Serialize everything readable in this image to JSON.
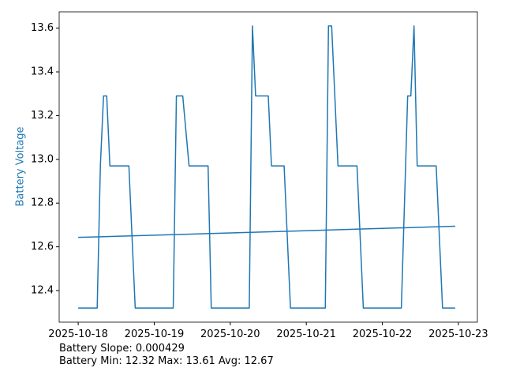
{
  "chart_data": {
    "type": "line",
    "ylabel": "Battery Voltage",
    "ylabel_color": "#1f77b4",
    "xlim": [
      20378.75,
      20384.25
    ],
    "xticks": [
      {
        "value": 20379,
        "label": "2025-10-18"
      },
      {
        "value": 20380,
        "label": "2025-10-19"
      },
      {
        "value": 20381,
        "label": "2025-10-20"
      },
      {
        "value": 20382,
        "label": "2025-10-21"
      },
      {
        "value": 20383,
        "label": "2025-10-22"
      },
      {
        "value": 20384,
        "label": "2025-10-23"
      }
    ],
    "ylim": [
      12.2555,
      13.6745
    ],
    "yticks": [
      12.4,
      12.6,
      12.8,
      {
        "value": 13.0,
        "label": "13.0"
      },
      13.2,
      13.4,
      13.6
    ],
    "grid": false,
    "series": [
      {
        "color": "#1f77b4",
        "x": [
          20379,
          20379.25,
          20379.2917,
          20379.3333,
          20379.375,
          20379.4167,
          20379.6667,
          20379.75,
          20380.25,
          20380.2917,
          20380.375,
          20380.4583,
          20380.7083,
          20380.75,
          20381.25,
          20381.2917,
          20381.3333,
          20381.5,
          20381.5417,
          20381.7083,
          20381.7917,
          20382.25,
          20382.2917,
          20382.3333,
          20382.4167,
          20382.6667,
          20382.75,
          20383.25,
          20383.3333,
          20383.375,
          20383.4167,
          20383.4583,
          20383.7083,
          20383.7917,
          20383.9583
        ],
        "values": [
          12.32,
          12.32,
          12.97,
          13.29,
          13.29,
          12.97,
          12.97,
          12.32,
          12.32,
          13.29,
          13.29,
          12.97,
          12.97,
          12.32,
          12.32,
          13.61,
          13.29,
          13.29,
          12.97,
          12.97,
          12.32,
          12.32,
          13.61,
          13.61,
          12.97,
          12.97,
          12.32,
          12.32,
          13.29,
          13.29,
          13.61,
          12.97,
          12.97,
          12.32,
          12.32
        ]
      },
      {
        "color": "#1f77b4",
        "x": [
          20379,
          20383.9583
        ],
        "values": [
          12.643,
          12.694
        ]
      }
    ],
    "annotations": [
      "Battery Slope: 0.000429",
      "Battery Min: 12.32 Max: 13.61 Avg: 12.67"
    ]
  }
}
